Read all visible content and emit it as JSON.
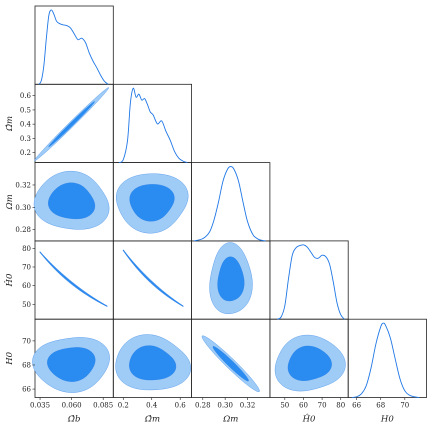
{
  "chart_data": {
    "type": "corner",
    "accent_color": "#1f77e6",
    "contour_inner_color": "#2a8cf0",
    "contour_outer_color": "#9fccf6",
    "parameters": [
      {
        "key": "omega_b",
        "label": "Ω̂b",
        "range": [
          0.031,
          0.093
        ],
        "ticks": [
          0.035,
          0.06,
          0.085
        ],
        "tick_labels": [
          "0.035",
          "0.060",
          "0.085"
        ]
      },
      {
        "key": "omega_m_hat",
        "label": "Ω̂m",
        "range": [
          0.13,
          0.68
        ],
        "ticks": [
          0.2,
          0.3,
          0.4,
          0.5,
          0.6
        ],
        "tick_labels_y": [
          "0.2",
          "0.3",
          "0.4",
          "0.5",
          "0.6"
        ],
        "ticks_x": [
          0.2,
          0.4,
          0.6
        ],
        "tick_labels_x": [
          "0.2",
          "0.4",
          "0.6"
        ]
      },
      {
        "key": "omega_m",
        "label": "Ωm",
        "range": [
          0.27,
          0.34
        ],
        "ticks": [
          0.28,
          0.3,
          0.32
        ],
        "tick_labels": [
          "0.28",
          "0.30",
          "0.32"
        ]
      },
      {
        "key": "h0_hat",
        "label": "Ĥ0",
        "range": [
          42,
          84
        ],
        "ticks_y": [
          50,
          60,
          70,
          80
        ],
        "tick_labels_y": [
          "50",
          "60",
          "70",
          "80"
        ],
        "ticks_x": [
          50,
          60,
          70,
          80
        ],
        "tick_labels_x": [
          "50",
          "60",
          "70",
          "80"
        ]
      },
      {
        "key": "h0",
        "label": "H0",
        "range": [
          65.3,
          71.8
        ],
        "ticks_y": [
          66,
          68,
          70
        ],
        "tick_labels_y": [
          "66",
          "68",
          "70"
        ],
        "ticks_x": [
          66,
          68,
          70
        ],
        "tick_labels_x": [
          "66",
          "68",
          "70"
        ]
      }
    ],
    "marginals": [
      {
        "parameter": "omega_b",
        "x": [
          0.034,
          0.036,
          0.038,
          0.04,
          0.042,
          0.044,
          0.046,
          0.048,
          0.05,
          0.053,
          0.056,
          0.059,
          0.062,
          0.065,
          0.068,
          0.071,
          0.074,
          0.077,
          0.08,
          0.083,
          0.086,
          0.089
        ],
        "y": [
          0.0,
          0.05,
          0.25,
          0.62,
          0.93,
          1.0,
          0.94,
          0.85,
          0.82,
          0.8,
          0.79,
          0.76,
          0.68,
          0.6,
          0.62,
          0.56,
          0.42,
          0.31,
          0.22,
          0.12,
          0.04,
          0.0
        ]
      },
      {
        "parameter": "omega_m_hat",
        "x": [
          0.17,
          0.2,
          0.23,
          0.25,
          0.27,
          0.29,
          0.31,
          0.33,
          0.35,
          0.37,
          0.39,
          0.41,
          0.44,
          0.47,
          0.5,
          0.53,
          0.56,
          0.59,
          0.62,
          0.65
        ],
        "y": [
          0.0,
          0.04,
          0.3,
          0.8,
          1.0,
          0.88,
          0.92,
          0.84,
          0.86,
          0.78,
          0.68,
          0.64,
          0.52,
          0.56,
          0.42,
          0.3,
          0.15,
          0.06,
          0.02,
          0.0
        ]
      },
      {
        "parameter": "omega_m",
        "x": [
          0.272,
          0.28,
          0.286,
          0.29,
          0.294,
          0.298,
          0.302,
          0.305,
          0.308,
          0.312,
          0.316,
          0.32,
          0.325,
          0.33,
          0.336
        ],
        "y": [
          0.0,
          0.03,
          0.12,
          0.28,
          0.52,
          0.8,
          0.96,
          1.0,
          0.96,
          0.8,
          0.52,
          0.26,
          0.08,
          0.02,
          0.0
        ]
      },
      {
        "parameter": "h0_hat",
        "x": [
          46,
          48,
          50,
          52,
          54,
          56,
          58,
          60,
          62,
          64,
          66,
          68,
          70,
          72,
          74,
          76,
          78,
          80,
          82
        ],
        "y": [
          0.0,
          0.03,
          0.18,
          0.55,
          0.86,
          0.96,
          0.99,
          1.0,
          0.97,
          0.9,
          0.83,
          0.82,
          0.86,
          0.84,
          0.74,
          0.5,
          0.22,
          0.06,
          0.0
        ]
      },
      {
        "parameter": "h0",
        "x": [
          65.6,
          66.0,
          66.4,
          66.8,
          67.2,
          67.6,
          68.0,
          68.2,
          68.4,
          68.8,
          69.2,
          69.6,
          70.0,
          70.4,
          70.8,
          71.2
        ],
        "y": [
          0.0,
          0.01,
          0.05,
          0.16,
          0.4,
          0.72,
          0.95,
          1.0,
          0.97,
          0.8,
          0.52,
          0.25,
          0.09,
          0.03,
          0.01,
          0.0
        ]
      }
    ],
    "contours": [
      {
        "x": "omega_b",
        "y": "omega_m_hat",
        "shape": "correlated",
        "center": [
          0.06,
          0.4
        ],
        "sd": [
          0.012,
          0.105
        ],
        "rho": 0.995
      },
      {
        "x": "omega_b",
        "y": "omega_m",
        "shape": "blob",
        "center": [
          0.06,
          0.305
        ],
        "sd": [
          0.012,
          0.0105
        ],
        "rho": 0.0
      },
      {
        "x": "omega_m_hat",
        "y": "omega_m",
        "shape": "blob",
        "center": [
          0.4,
          0.305
        ],
        "sd": [
          0.105,
          0.0105
        ],
        "rho": 0.0
      },
      {
        "x": "omega_b",
        "y": "h0_hat",
        "shape": "curved",
        "x_range": [
          0.035,
          0.088
        ],
        "y_at_x_min": 78,
        "y_at_x_max": 49,
        "width": 0.012
      },
      {
        "x": "omega_m_hat",
        "y": "h0_hat",
        "shape": "curved",
        "x_range": [
          0.2,
          0.62
        ],
        "y_at_x_min": 79,
        "y_at_x_max": 49,
        "width": 0.012
      },
      {
        "x": "omega_m",
        "y": "h0_hat",
        "shape": "blob",
        "center": [
          0.305,
          63
        ],
        "sd": [
          0.008,
          7.5
        ],
        "rho": 0.0
      },
      {
        "x": "omega_b",
        "y": "h0",
        "shape": "blob",
        "center": [
          0.06,
          68.1
        ],
        "sd": [
          0.012,
          0.95
        ],
        "rho": 0.0
      },
      {
        "x": "omega_m_hat",
        "y": "h0",
        "shape": "blob",
        "center": [
          0.4,
          68.1
        ],
        "sd": [
          0.105,
          0.95
        ],
        "rho": 0.0
      },
      {
        "x": "omega_m",
        "y": "h0",
        "shape": "correlated",
        "center": [
          0.305,
          68.1
        ],
        "sd": [
          0.0105,
          0.95
        ],
        "rho": -0.97
      },
      {
        "x": "h0_hat",
        "y": "h0",
        "shape": "blob",
        "center": [
          63,
          68.1
        ],
        "sd": [
          7.5,
          0.95
        ],
        "rho": 0.0
      }
    ],
    "grid": false,
    "legend": "none"
  }
}
